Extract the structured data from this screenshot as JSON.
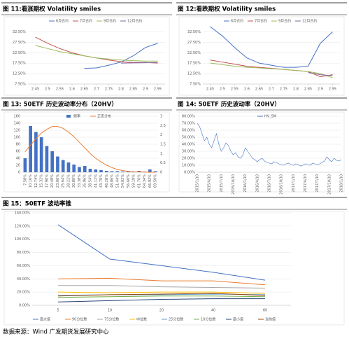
{
  "chart_data": [
    {
      "type": "line",
      "title": "图 11:看涨期权 Volatility smiles",
      "legend": true,
      "x": [
        2.45,
        2.5,
        2.55,
        2.6,
        2.65,
        2.7,
        2.75,
        2.8,
        2.85,
        2.9,
        2.95
      ],
      "xlim": [
        2.42,
        2.98
      ],
      "xticks": [
        2.45,
        2.5,
        2.55,
        2.6,
        2.65,
        2.7,
        2.75,
        2.8,
        2.85,
        2.9,
        2.95
      ],
      "ylim": [
        7.5,
        35
      ],
      "yticks": [
        {
          "value": 7.5,
          "label": "7.50%"
        },
        {
          "value": 12.5,
          "label": "12.50%"
        },
        {
          "value": 17.5,
          "label": "17.50%"
        },
        {
          "value": 22.5,
          "label": "22.50%"
        },
        {
          "value": 27.5,
          "label": "27.50%"
        },
        {
          "value": 32.5,
          "label": "32.50%"
        }
      ],
      "series": [
        {
          "name": "6月合约",
          "color": "#4472c4",
          "values": [
            null,
            null,
            null,
            null,
            15,
            15.2,
            16.5,
            18,
            21,
            25,
            27
          ]
        },
        {
          "name": "7月合约",
          "color": "#c0504d",
          "values": [
            30,
            27,
            24.5,
            22.5,
            21,
            20,
            19,
            18.2,
            17.8,
            17.8,
            17.5
          ]
        },
        {
          "name": "9月合约",
          "color": "#9bbb59",
          "values": [
            26,
            24.5,
            23,
            22,
            21,
            20,
            19.5,
            19,
            18.7,
            18.5,
            18.5
          ]
        },
        {
          "name": "12月合约",
          "color": "#8064a2",
          "values": [
            null,
            null,
            null,
            null,
            null,
            null,
            null,
            17.5,
            17.6,
            17.7,
            17.8
          ]
        }
      ]
    },
    {
      "type": "line",
      "title": "图 12:看跌期权 Volatility smiles",
      "legend": true,
      "x": [
        2.45,
        2.5,
        2.55,
        2.6,
        2.65,
        2.7,
        2.75,
        2.8,
        2.85,
        2.9,
        2.95
      ],
      "xlim": [
        2.42,
        2.98
      ],
      "xticks": [
        2.45,
        2.5,
        2.55,
        2.6,
        2.65,
        2.7,
        2.75,
        2.8,
        2.85,
        2.9,
        2.95
      ],
      "ylim": [
        7.5,
        35
      ],
      "yticks": [
        {
          "value": 7.5,
          "label": "7.50%"
        },
        {
          "value": 12.5,
          "label": "12.50%"
        },
        {
          "value": 17.5,
          "label": "17.50%"
        },
        {
          "value": 22.5,
          "label": "22.50%"
        },
        {
          "value": 27.5,
          "label": "27.50%"
        },
        {
          "value": 32.5,
          "label": "32.50%"
        }
      ],
      "series": [
        {
          "name": "6月合约",
          "color": "#4472c4",
          "values": [
            35,
            30.5,
            25,
            20,
            17.5,
            16.5,
            15.5,
            15.5,
            16,
            27,
            32.5
          ]
        },
        {
          "name": "7月合约",
          "color": "#c0504d",
          "values": [
            19,
            18,
            17,
            16,
            15.5,
            15,
            14.5,
            14,
            13.5,
            11,
            12
          ]
        },
        {
          "name": "9月合约",
          "color": "#9bbb59",
          "values": [
            17.5,
            16.8,
            16,
            15.5,
            15.2,
            14.8,
            14.5,
            14,
            13.5,
            12.5,
            10.5
          ]
        },
        {
          "name": "12月合约",
          "color": "#8064a2",
          "values": [
            null,
            null,
            null,
            null,
            null,
            null,
            null,
            null,
            13,
            12,
            11.5
          ]
        }
      ]
    },
    {
      "type": "bar",
      "title": "图 13: 50ETF 历史波动率分布（20HV）",
      "legend": true,
      "categories": [
        "7.58%",
        "10.16%",
        "12.74%",
        "15.32%",
        "17.90%",
        "20.48%",
        "23.06%",
        "25.64%",
        "28.22%",
        "30.80%",
        "33.38%",
        "35.96%",
        "38.54%",
        "41.12%",
        "43.70%",
        "46.28%",
        "48.86%",
        "51.44%",
        "54.02%",
        "56.60%",
        "59.18%",
        "61.76%",
        "64.34%",
        "66.92%",
        "69.50%"
      ],
      "ylim": [
        0,
        160
      ],
      "yticks": [
        0,
        20,
        40,
        60,
        80,
        100,
        120,
        140,
        160
      ],
      "y2lim": [
        0,
        3
      ],
      "y2ticks": [
        0,
        0.5,
        1,
        1.5,
        2,
        2.5,
        3
      ],
      "series": [
        {
          "name": "频率",
          "color": "#4472c4",
          "values": [
            40,
            132,
            115,
            100,
            75,
            60,
            45,
            35,
            28,
            22,
            15,
            18,
            10,
            8,
            6,
            4,
            3,
            3,
            2,
            2,
            1,
            4,
            2,
            8,
            3
          ]
        },
        {
          "name": "正态分布",
          "color": "#ed7d31",
          "axis": "y2",
          "values": [
            1.1,
            1.45,
            1.8,
            2.1,
            2.3,
            2.45,
            2.45,
            2.35,
            2.15,
            1.9,
            1.6,
            1.3,
            1,
            0.75,
            0.55,
            0.38,
            0.25,
            0.15,
            0.09,
            0.05,
            0.03,
            0.02,
            0.01,
            0,
            0
          ]
        }
      ]
    },
    {
      "type": "line",
      "title": "图 14: 50ETF 历史波动率（20HV）",
      "legend": true,
      "categories": [
        "2015/1/10",
        null,
        null,
        null,
        null,
        "2015/4/10",
        null,
        null,
        null,
        null,
        "2015/7/10",
        null,
        null,
        null,
        null,
        "2015/10/10",
        null,
        null,
        null,
        null,
        "2016/1/10",
        null,
        null,
        null,
        null,
        "2016/4/10",
        null,
        null,
        null,
        null,
        "2016/7/10",
        null,
        null,
        null,
        null,
        "2016/10/10",
        null,
        null,
        null,
        null,
        "2017/1/10",
        null,
        null,
        null,
        null,
        "2017/4/10",
        null,
        null,
        null,
        null,
        "2017/7/10",
        null,
        null,
        null,
        null,
        "2017/10/10",
        null,
        null,
        null,
        null,
        "2018/1/10"
      ],
      "ylim": [
        0,
        80
      ],
      "yticks": [
        {
          "value": 0,
          "label": "0.00%"
        },
        {
          "value": 10,
          "label": "10.00%"
        },
        {
          "value": 20,
          "label": "20.00%"
        },
        {
          "value": 30,
          "label": "30.00%"
        },
        {
          "value": 40,
          "label": "40.00%"
        },
        {
          "value": 50,
          "label": "50.00%"
        },
        {
          "value": 60,
          "label": "60.00%"
        },
        {
          "value": 70,
          "label": "70.00%"
        },
        {
          "value": 80,
          "label": "80.00%"
        }
      ],
      "series": [
        {
          "name": "HV_SM",
          "color": "#4472c4",
          "values": [
            70,
            65,
            55,
            45,
            50,
            40,
            35,
            45,
            55,
            40,
            30,
            35,
            42,
            38,
            30,
            25,
            28,
            22,
            20,
            24,
            35,
            30,
            25,
            20,
            18,
            15,
            18,
            20,
            16,
            14,
            13,
            12,
            15,
            14,
            12,
            11,
            10,
            12,
            13,
            11,
            10,
            12,
            11,
            9,
            10,
            12,
            11,
            10,
            13,
            12,
            11,
            12,
            14,
            16,
            22,
            18,
            15,
            20,
            17,
            16,
            18
          ]
        }
      ]
    },
    {
      "type": "line",
      "title": "图 15：50ETF 波动率锥",
      "legend": true,
      "categories": [
        "5",
        "10",
        "20",
        "40",
        "60"
      ],
      "ylim": [
        0,
        140
      ],
      "yticks": [
        {
          "value": 0,
          "label": "0.00%"
        },
        {
          "value": 20,
          "label": "20.00%"
        },
        {
          "value": 40,
          "label": "40.00%"
        },
        {
          "value": 60,
          "label": "60.00%"
        },
        {
          "value": 80,
          "label": "80.00%"
        },
        {
          "value": 100,
          "label": "100.00%"
        },
        {
          "value": 120,
          "label": "120.00%"
        },
        {
          "value": 140,
          "label": "140.00%"
        }
      ],
      "series": [
        {
          "name": "最大值",
          "color": "#4472c4",
          "values": [
            122,
            70,
            60,
            50,
            38
          ]
        },
        {
          "name": "90分位数",
          "color": "#ed7d31",
          "values": [
            40,
            41,
            37,
            37,
            31
          ]
        },
        {
          "name": "75分位数",
          "color": "#a5a5a5",
          "values": [
            30,
            30,
            28,
            27,
            26
          ]
        },
        {
          "name": "中位数",
          "color": "#ffc000",
          "values": [
            20,
            19,
            20,
            20,
            18
          ]
        },
        {
          "name": "25分位数",
          "color": "#5b9bd5",
          "values": [
            15,
            16,
            16,
            17,
            16
          ]
        },
        {
          "name": "10分位数",
          "color": "#70ad47",
          "values": [
            12,
            13,
            14,
            14,
            13
          ]
        },
        {
          "name": "最小值",
          "color": "#264478",
          "values": [
            5,
            7,
            9,
            10,
            10
          ]
        },
        {
          "name": "当前值",
          "color": "#9e480e",
          "values": [
            14,
            16,
            17,
            18,
            15
          ]
        }
      ]
    }
  ],
  "footer": "数据来源：Wind 广发期货发展研究中心"
}
